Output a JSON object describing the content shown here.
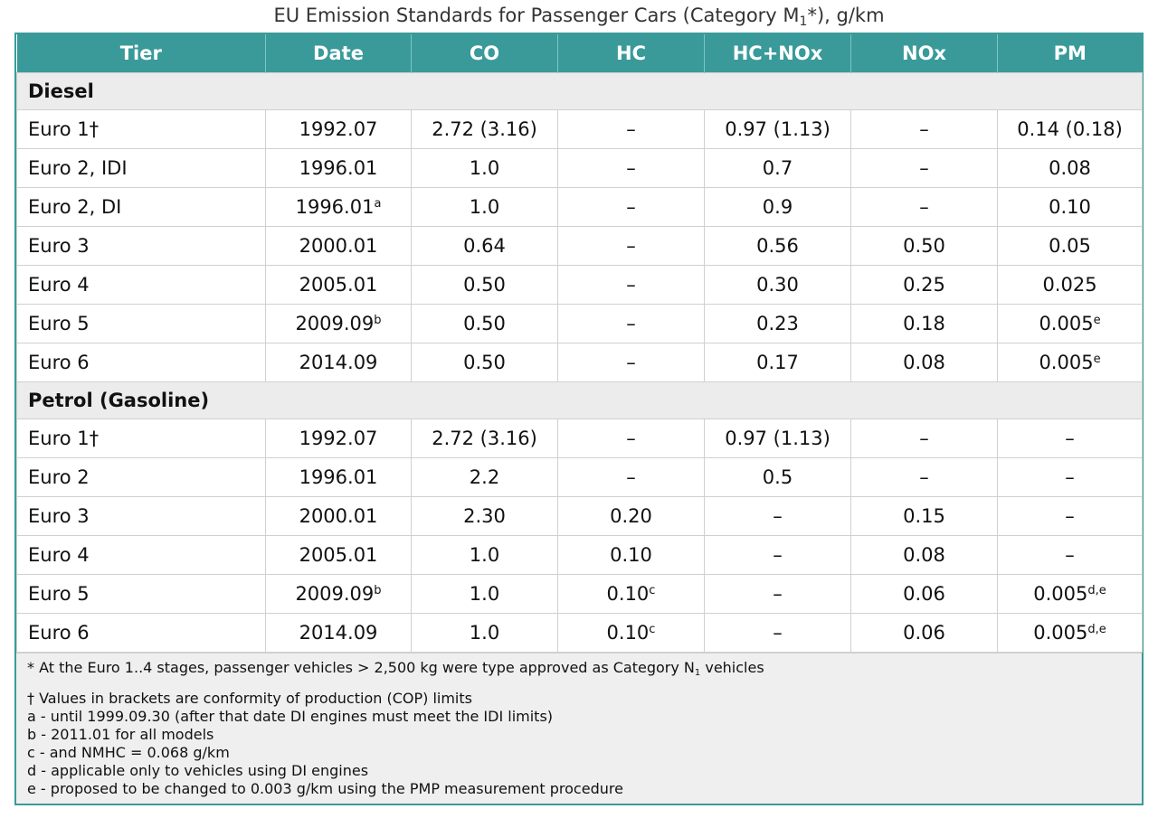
{
  "title": {
    "text_before": "EU Emission Standards for Passenger Cars (Category M",
    "sub": "1",
    "text_after": "*), g/km"
  },
  "columns": [
    "Tier",
    "Date",
    "CO",
    "HC",
    "HC+NOx",
    "NOx",
    "PM"
  ],
  "groups": [
    {
      "name": "Diesel",
      "rows": [
        [
          {
            "t": "Euro 1†"
          },
          {
            "t": "1992.07"
          },
          {
            "t": "2.72 (3.16)"
          },
          {
            "t": "–"
          },
          {
            "t": "0.97 (1.13)"
          },
          {
            "t": "–"
          },
          {
            "t": "0.14 (0.18)"
          }
        ],
        [
          {
            "t": "Euro 2, IDI"
          },
          {
            "t": "1996.01"
          },
          {
            "t": "1.0"
          },
          {
            "t": "–"
          },
          {
            "t": "0.7"
          },
          {
            "t": "–"
          },
          {
            "t": "0.08"
          }
        ],
        [
          {
            "t": "Euro 2, DI"
          },
          {
            "t": "1996.01",
            "s": "a"
          },
          {
            "t": "1.0"
          },
          {
            "t": "–"
          },
          {
            "t": "0.9"
          },
          {
            "t": "–"
          },
          {
            "t": "0.10"
          }
        ],
        [
          {
            "t": "Euro 3"
          },
          {
            "t": "2000.01"
          },
          {
            "t": "0.64"
          },
          {
            "t": "–"
          },
          {
            "t": "0.56"
          },
          {
            "t": "0.50"
          },
          {
            "t": "0.05"
          }
        ],
        [
          {
            "t": "Euro 4"
          },
          {
            "t": "2005.01"
          },
          {
            "t": "0.50"
          },
          {
            "t": "–"
          },
          {
            "t": "0.30"
          },
          {
            "t": "0.25"
          },
          {
            "t": "0.025"
          }
        ],
        [
          {
            "t": "Euro 5"
          },
          {
            "t": "2009.09",
            "s": "b"
          },
          {
            "t": "0.50"
          },
          {
            "t": "–"
          },
          {
            "t": "0.23"
          },
          {
            "t": "0.18"
          },
          {
            "t": "0.005",
            "s": "e"
          }
        ],
        [
          {
            "t": "Euro 6"
          },
          {
            "t": "2014.09"
          },
          {
            "t": "0.50"
          },
          {
            "t": "–"
          },
          {
            "t": "0.17"
          },
          {
            "t": "0.08"
          },
          {
            "t": "0.005",
            "s": "e"
          }
        ]
      ]
    },
    {
      "name": "Petrol (Gasoline)",
      "rows": [
        [
          {
            "t": "Euro 1†"
          },
          {
            "t": "1992.07"
          },
          {
            "t": "2.72 (3.16)"
          },
          {
            "t": "–"
          },
          {
            "t": "0.97 (1.13)"
          },
          {
            "t": "–"
          },
          {
            "t": "–"
          }
        ],
        [
          {
            "t": "Euro 2"
          },
          {
            "t": "1996.01"
          },
          {
            "t": "2.2"
          },
          {
            "t": "–"
          },
          {
            "t": "0.5"
          },
          {
            "t": "–"
          },
          {
            "t": "–"
          }
        ],
        [
          {
            "t": "Euro 3"
          },
          {
            "t": "2000.01"
          },
          {
            "t": "2.30"
          },
          {
            "t": "0.20"
          },
          {
            "t": "–"
          },
          {
            "t": "0.15"
          },
          {
            "t": "–"
          }
        ],
        [
          {
            "t": "Euro 4"
          },
          {
            "t": "2005.01"
          },
          {
            "t": "1.0"
          },
          {
            "t": "0.10"
          },
          {
            "t": "–"
          },
          {
            "t": "0.08"
          },
          {
            "t": "–"
          }
        ],
        [
          {
            "t": "Euro 5"
          },
          {
            "t": "2009.09",
            "s": "b"
          },
          {
            "t": "1.0"
          },
          {
            "t": "0.10",
            "s": "c"
          },
          {
            "t": "–"
          },
          {
            "t": "0.06"
          },
          {
            "t": "0.005",
            "s": "d,e"
          }
        ],
        [
          {
            "t": "Euro 6"
          },
          {
            "t": "2014.09"
          },
          {
            "t": "1.0"
          },
          {
            "t": "0.10",
            "s": "c"
          },
          {
            "t": "–"
          },
          {
            "t": "0.06"
          },
          {
            "t": "0.005",
            "s": "d,e"
          }
        ]
      ]
    }
  ],
  "notes": {
    "n0_before": "* At the Euro 1..4 stages, passenger vehicles > 2,500 kg were type approved as Category N",
    "n0_sub": "1",
    "n0_after": " vehicles",
    "lines": [
      "† Values in brackets are conformity of production (COP) limits",
      "a - until 1999.09.30 (after that date DI engines must meet the IDI limits)",
      "b - 2011.01 for all models",
      "c - and NMHC = 0.068 g/km",
      "d - applicable only to vehicles using DI engines",
      "e - proposed to be changed to 0.003 g/km using the PMP measurement procedure"
    ]
  }
}
